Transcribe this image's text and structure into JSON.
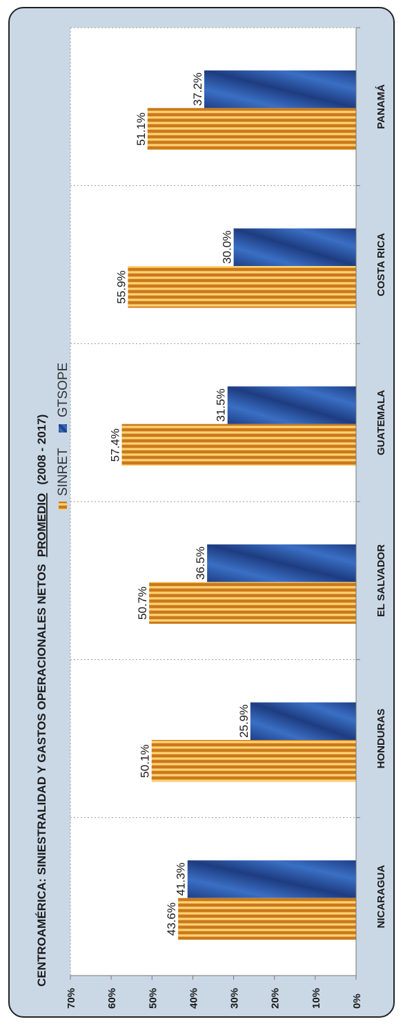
{
  "chart_data": {
    "type": "bar",
    "orientation": "rotated-90-ccw",
    "title": "CENTROAMÉRICA:  SINIESTRALIDAD  Y GASTOS  OPERACIONALES NETOS",
    "title_emphasis": "PROMEDIO",
    "title_period": "(2008 - 2017)",
    "categories": [
      "NICARAGUA",
      "HONDURAS",
      "EL SALVADOR",
      "GUATEMALA",
      "COSTA RICA",
      "PANAMÁ"
    ],
    "series": [
      {
        "name": "SINRET",
        "color": "#e0962a",
        "values": [
          43.6,
          50.1,
          50.7,
          57.4,
          55.9,
          51.1
        ],
        "labels": [
          "43.6%",
          "50.1%",
          "50.7%",
          "57.4%",
          "55.9%",
          "51.1%"
        ]
      },
      {
        "name": "GTSOPE",
        "color": "#2a55a8",
        "values": [
          41.3,
          25.9,
          36.5,
          31.5,
          30.0,
          37.2
        ],
        "labels": [
          "41.3%",
          "25.9%",
          "36.5%",
          "31.5%",
          "30.0%",
          "37.2%"
        ]
      }
    ],
    "y_ticks": [
      "0%",
      "10%",
      "20%",
      "30%",
      "40%",
      "50%",
      "60%",
      "70%"
    ],
    "ylim": [
      0,
      70
    ],
    "legend_position": "top",
    "grid": "vertical-dotted"
  }
}
